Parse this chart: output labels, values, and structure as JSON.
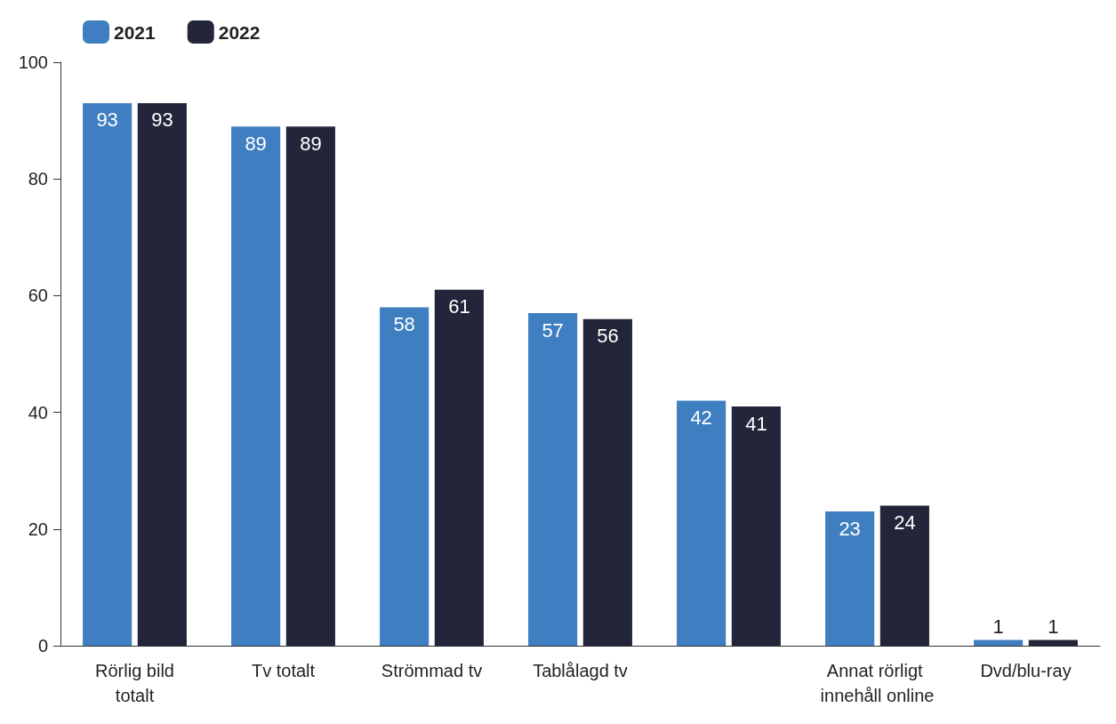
{
  "chart_data": {
    "type": "bar",
    "categories": [
      "Rörlig bild totalt",
      "Tv totalt",
      "Strömmad tv",
      "Tablålagd tv",
      null,
      "Annat rörligt innehåll online",
      "Dvd/blu-ray"
    ],
    "series": [
      {
        "name": "2021",
        "color": "#3f7fc1",
        "values": [
          93,
          89,
          58,
          57,
          42,
          23,
          1
        ]
      },
      {
        "name": "2022",
        "color": "#23263a",
        "values": [
          93,
          89,
          61,
          56,
          41,
          24,
          1
        ]
      }
    ],
    "ylim": [
      0,
      100
    ],
    "yticks": [
      0,
      20,
      40,
      60,
      80,
      100
    ],
    "grid": false,
    "legend": "top left",
    "data_labels": true
  }
}
